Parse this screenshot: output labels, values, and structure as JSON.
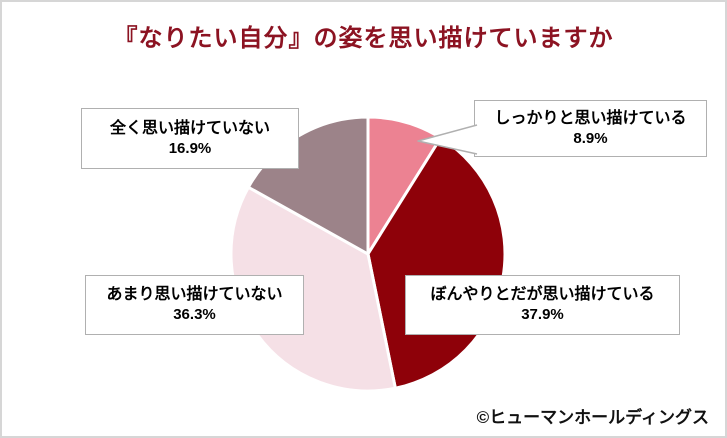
{
  "page": {
    "title": "『なりたい自分』の姿を思い描けていますか",
    "credit": "©ヒューマンホールディングス"
  },
  "chart_data": {
    "type": "pie",
    "title": "『なりたい自分』の姿を思い描けていますか",
    "unit": "%",
    "start_angle_deg": 0,
    "direction": "clockwise",
    "separator_color": "#ffffff",
    "legend_position": "callout-boxes",
    "slices": [
      {
        "label": "しっかりと思い描けている",
        "value": 8.9,
        "pct_label": "8.9%",
        "color": "#ec8292"
      },
      {
        "label": "ぼんやりとだが思い描けている",
        "value": 37.9,
        "pct_label": "37.9%",
        "color": "#8e0109"
      },
      {
        "label": "あまり思い描けていない",
        "value": 36.3,
        "pct_label": "36.3%",
        "color": "#f5e0e6"
      },
      {
        "label": "全く思い描けていない",
        "value": 16.9,
        "pct_label": "16.9%",
        "color": "#9c8389"
      }
    ]
  }
}
